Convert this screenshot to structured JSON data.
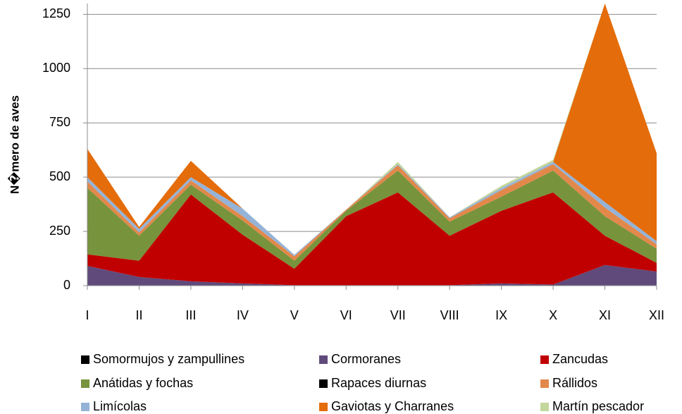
{
  "chart_data": {
    "type": "area",
    "y_label": "N�mero de aves",
    "categories": [
      "I",
      "II",
      "III",
      "IV",
      "V",
      "VI",
      "VII",
      "VIII",
      "IX",
      "X",
      "XI",
      "XII"
    ],
    "stacked": true,
    "ylim": [
      0,
      1300
    ],
    "yticks": [
      0,
      250,
      500,
      750,
      1000,
      1250
    ],
    "grid": true,
    "series": [
      {
        "name": "Somormujos y zampullines",
        "color": "#000000",
        "values": [
          0,
          0,
          0,
          0,
          0,
          0,
          0,
          0,
          0,
          0,
          0,
          0
        ]
      },
      {
        "name": "Cormoranes",
        "color": "#604a7b",
        "values": [
          91,
          40,
          20,
          10,
          2,
          2,
          2,
          2,
          10,
          5,
          95,
          65
        ]
      },
      {
        "name": "Zancudas",
        "color": "#c00000",
        "values": [
          53,
          75,
          400,
          225,
          76,
          318,
          428,
          228,
          335,
          425,
          135,
          40
        ]
      },
      {
        "name": "Anátidas y fochas",
        "color": "#77933c",
        "values": [
          306,
          115,
          45,
          65,
          37,
          25,
          100,
          65,
          65,
          100,
          90,
          65
        ]
      },
      {
        "name": "Rapaces diurnas",
        "color": "#000000",
        "values": [
          0,
          0,
          0,
          0,
          0,
          0,
          0,
          0,
          0,
          0,
          0,
          0
        ]
      },
      {
        "name": "Rállidos",
        "color": "#e2884a",
        "values": [
          30,
          15,
          20,
          20,
          20,
          5,
          25,
          15,
          30,
          30,
          40,
          20
        ]
      },
      {
        "name": "Limícolas",
        "color": "#95b3d7",
        "values": [
          20,
          17,
          15,
          35,
          7,
          0,
          5,
          5,
          10,
          10,
          25,
          15
        ]
      },
      {
        "name": "Gaviotas y Charranes",
        "color": "#e46c0a",
        "values": [
          130,
          8,
          75,
          0,
          0,
          0,
          0,
          0,
          0,
          0,
          915,
          405
        ]
      },
      {
        "name": "Martín pescador",
        "color": "#c3d69b",
        "values": [
          0,
          0,
          0,
          0,
          0,
          0,
          10,
          0,
          10,
          10,
          0,
          0
        ]
      }
    ]
  }
}
